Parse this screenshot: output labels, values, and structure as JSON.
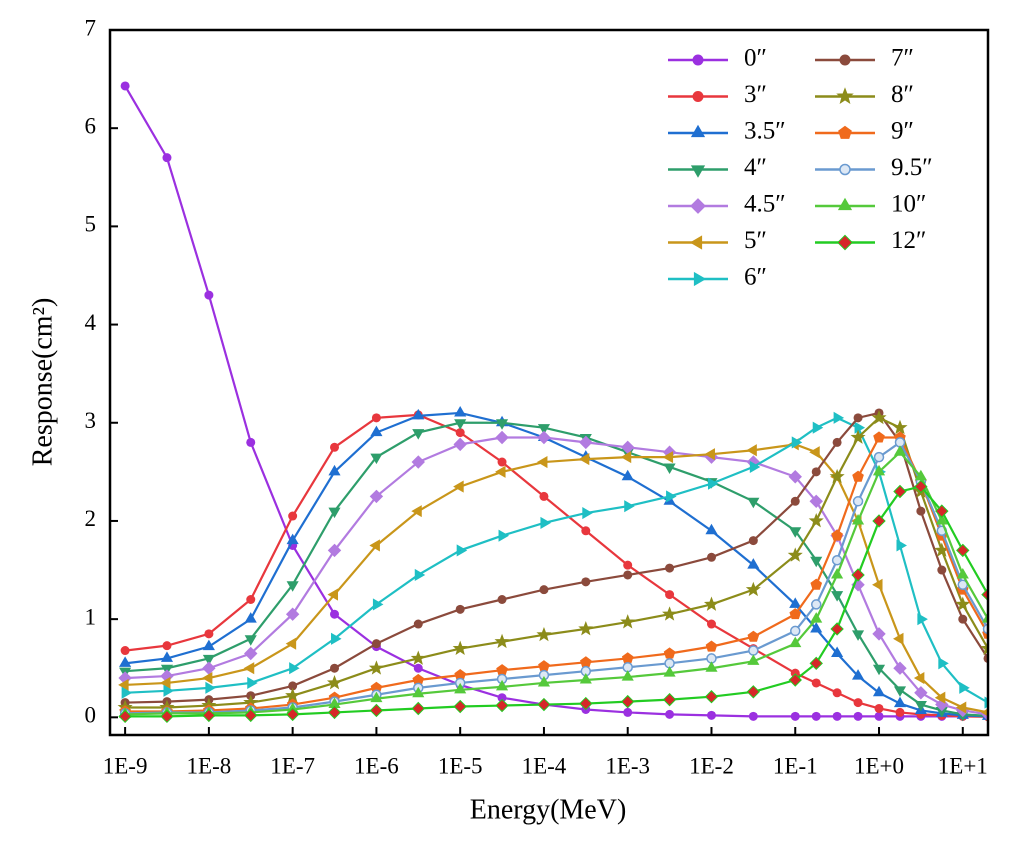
{
  "chart_data": {
    "type": "line",
    "x_label": "Energy(MeV)",
    "y_label": "Response(cm²)",
    "xscale": "log",
    "xlim": [
      6.6e-10,
      20
    ],
    "ylim": [
      -0.18,
      7
    ],
    "xticks": [
      {
        "value": 1e-09,
        "label": "1E-9"
      },
      {
        "value": 1e-08,
        "label": "1E-8"
      },
      {
        "value": 1e-07,
        "label": "1E-7"
      },
      {
        "value": 1e-06,
        "label": "1E-6"
      },
      {
        "value": 1e-05,
        "label": "1E-5"
      },
      {
        "value": 0.0001,
        "label": "1E-4"
      },
      {
        "value": 0.001,
        "label": "1E-3"
      },
      {
        "value": 0.01,
        "label": "1E-2"
      },
      {
        "value": 0.1,
        "label": "1E-1"
      },
      {
        "value": 1,
        "label": "1E+0"
      },
      {
        "value": 10,
        "label": "1E+1"
      }
    ],
    "yticks": [
      0,
      1,
      2,
      3,
      4,
      5,
      6,
      7
    ],
    "legend": {
      "position": "upper right",
      "columns": 2
    },
    "x": [
      1e-09,
      3.16e-09,
      1e-08,
      3.16e-08,
      1e-07,
      3.16e-07,
      1e-06,
      3.16e-06,
      1e-05,
      3.16e-05,
      0.0001,
      0.000316,
      0.001,
      0.00316,
      0.01,
      0.0316,
      0.1,
      0.178,
      0.316,
      0.562,
      1,
      1.78,
      3.16,
      5.62,
      10,
      20
    ],
    "series": [
      {
        "name": "0″",
        "color": "#9b30e0",
        "marker": "circle",
        "values": [
          6.43,
          5.7,
          4.3,
          2.8,
          1.75,
          1.05,
          0.72,
          0.5,
          0.33,
          0.2,
          0.13,
          0.08,
          0.05,
          0.03,
          0.02,
          0.01,
          0.01,
          0.01,
          0.01,
          0.01,
          0.01,
          0.01,
          0.01,
          0.01,
          0.01,
          0.01
        ]
      },
      {
        "name": "3″",
        "color": "#e8373d",
        "marker": "circle",
        "values": [
          0.68,
          0.73,
          0.85,
          1.2,
          2.05,
          2.75,
          3.05,
          3.08,
          2.9,
          2.6,
          2.25,
          1.9,
          1.55,
          1.25,
          0.95,
          0.7,
          0.45,
          0.35,
          0.25,
          0.15,
          0.09,
          0.05,
          0.03,
          0.02,
          0.01,
          0.005
        ]
      },
      {
        "name": "3.5″",
        "color": "#1f6fd1",
        "marker": "triangle-up",
        "values": [
          0.55,
          0.6,
          0.72,
          1.0,
          1.8,
          2.5,
          2.9,
          3.07,
          3.1,
          3.0,
          2.85,
          2.65,
          2.45,
          2.2,
          1.9,
          1.55,
          1.15,
          0.9,
          0.65,
          0.42,
          0.25,
          0.14,
          0.07,
          0.04,
          0.02,
          0.01
        ]
      },
      {
        "name": "4″",
        "color": "#2e9e6b",
        "marker": "triangle-down",
        "values": [
          0.47,
          0.5,
          0.6,
          0.8,
          1.35,
          2.1,
          2.65,
          2.9,
          3.0,
          3.0,
          2.95,
          2.85,
          2.7,
          2.55,
          2.4,
          2.2,
          1.9,
          1.6,
          1.25,
          0.85,
          0.5,
          0.28,
          0.13,
          0.07,
          0.03,
          0.015
        ]
      },
      {
        "name": "4.5″",
        "color": "#b27be0",
        "marker": "diamond",
        "values": [
          0.4,
          0.42,
          0.5,
          0.65,
          1.05,
          1.7,
          2.25,
          2.6,
          2.78,
          2.85,
          2.85,
          2.8,
          2.75,
          2.7,
          2.65,
          2.6,
          2.45,
          2.2,
          1.85,
          1.35,
          0.85,
          0.5,
          0.25,
          0.13,
          0.07,
          0.03
        ]
      },
      {
        "name": "5″",
        "color": "#c9961a",
        "marker": "triangle-left",
        "values": [
          0.33,
          0.35,
          0.4,
          0.5,
          0.75,
          1.25,
          1.75,
          2.1,
          2.35,
          2.5,
          2.6,
          2.63,
          2.65,
          2.65,
          2.68,
          2.72,
          2.78,
          2.7,
          2.45,
          2.0,
          1.35,
          0.8,
          0.4,
          0.2,
          0.1,
          0.05
        ]
      },
      {
        "name": "6″",
        "color": "#1fbfc4",
        "marker": "triangle-right",
        "values": [
          0.25,
          0.27,
          0.3,
          0.35,
          0.5,
          0.8,
          1.15,
          1.45,
          1.7,
          1.85,
          1.98,
          2.08,
          2.15,
          2.25,
          2.38,
          2.55,
          2.8,
          2.95,
          3.05,
          2.95,
          2.5,
          1.75,
          1.0,
          0.55,
          0.3,
          0.15
        ]
      },
      {
        "name": "7″",
        "color": "#8b4a3c",
        "marker": "circle",
        "values": [
          0.15,
          0.16,
          0.18,
          0.22,
          0.32,
          0.5,
          0.75,
          0.95,
          1.1,
          1.2,
          1.3,
          1.38,
          1.45,
          1.52,
          1.63,
          1.8,
          2.2,
          2.5,
          2.8,
          3.05,
          3.1,
          2.8,
          2.1,
          1.5,
          1.0,
          0.6
        ]
      },
      {
        "name": "8″",
        "color": "#8c8c1a",
        "marker": "star",
        "values": [
          0.1,
          0.1,
          0.12,
          0.15,
          0.22,
          0.35,
          0.5,
          0.6,
          0.7,
          0.77,
          0.84,
          0.9,
          0.97,
          1.05,
          1.15,
          1.3,
          1.65,
          2.0,
          2.45,
          2.85,
          3.05,
          2.95,
          2.3,
          1.7,
          1.15,
          0.7
        ]
      },
      {
        "name": "9″",
        "color": "#f06a1c",
        "marker": "pentagon",
        "values": [
          0.06,
          0.06,
          0.07,
          0.09,
          0.13,
          0.2,
          0.3,
          0.38,
          0.43,
          0.48,
          0.52,
          0.56,
          0.6,
          0.65,
          0.72,
          0.82,
          1.05,
          1.35,
          1.85,
          2.45,
          2.85,
          2.85,
          2.4,
          1.85,
          1.3,
          0.85
        ]
      },
      {
        "name": "9.5″",
        "color": "#6a9ad0",
        "marker": "circle-open",
        "values": [
          0.04,
          0.05,
          0.05,
          0.07,
          0.1,
          0.16,
          0.23,
          0.3,
          0.35,
          0.39,
          0.43,
          0.47,
          0.51,
          0.55,
          0.6,
          0.68,
          0.88,
          1.15,
          1.6,
          2.2,
          2.65,
          2.8,
          2.4,
          1.9,
          1.35,
          0.9
        ]
      },
      {
        "name": "10″",
        "color": "#55c93b",
        "marker": "triangle-up",
        "values": [
          0.03,
          0.04,
          0.04,
          0.05,
          0.08,
          0.13,
          0.19,
          0.24,
          0.28,
          0.31,
          0.35,
          0.38,
          0.41,
          0.45,
          0.5,
          0.57,
          0.75,
          1.0,
          1.45,
          2.0,
          2.5,
          2.7,
          2.45,
          2.0,
          1.45,
          1.0
        ]
      },
      {
        "name": "12″",
        "color": "#22cc22",
        "marker_color": "#d62728",
        "marker": "diamond",
        "values": [
          0.01,
          0.01,
          0.02,
          0.02,
          0.03,
          0.05,
          0.07,
          0.09,
          0.11,
          0.12,
          0.13,
          0.14,
          0.16,
          0.18,
          0.21,
          0.26,
          0.38,
          0.55,
          0.9,
          1.45,
          2.0,
          2.3,
          2.35,
          2.1,
          1.7,
          1.25
        ]
      }
    ]
  }
}
